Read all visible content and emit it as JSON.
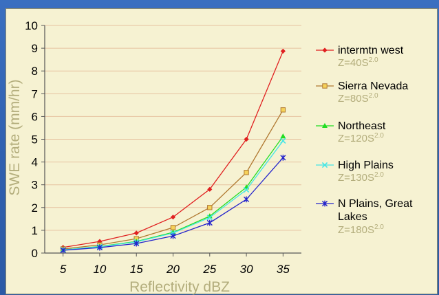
{
  "chart_data": {
    "type": "line",
    "x": [
      5,
      10,
      15,
      20,
      25,
      30,
      35
    ],
    "xticks": [
      "5",
      "10",
      "15",
      "20",
      "25",
      "30",
      "35"
    ],
    "yticks": [
      "0",
      "1",
      "2",
      "3",
      "4",
      "5",
      "6",
      "7",
      "8",
      "9",
      "10"
    ],
    "ylim": [
      0,
      10
    ],
    "xlabel": "Reflectivity dBZ",
    "ylabel": "SWE rate (mm/hr)",
    "grid": "horizontal",
    "legend": "right",
    "series": [
      {
        "name": "intermtn west",
        "formula_base": "Z=40S",
        "formula_exp": "2.0",
        "color": "#e02020",
        "marker": "diamond",
        "values": [
          0.25,
          0.51,
          0.88,
          1.58,
          2.8,
          5.0,
          8.87
        ]
      },
      {
        "name": "Sierra Nevada",
        "formula_base": "Z=80S",
        "formula_exp": "2.0",
        "color": "#b07830",
        "marker": "square",
        "values": [
          0.18,
          0.36,
          0.63,
          1.12,
          2.0,
          3.54,
          6.29
        ]
      },
      {
        "name": "Northeast",
        "formula_base": "Z=120S",
        "formula_exp": "2.0",
        "color": "#22dd22",
        "marker": "triangle",
        "values": [
          0.14,
          0.29,
          0.51,
          0.91,
          1.62,
          2.89,
          5.13
        ]
      },
      {
        "name": "High Plains",
        "formula_base": "Z=130S",
        "formula_exp": "2.0",
        "color": "#44e6e6",
        "marker": "x",
        "values": [
          0.14,
          0.28,
          0.49,
          0.88,
          1.56,
          2.78,
          4.93
        ]
      },
      {
        "name": "N Plains, Great",
        "name_line2": "Lakes",
        "formula_base": "Z=180S",
        "formula_exp": "2.0",
        "color": "#2424cc",
        "marker": "star",
        "values": [
          0.12,
          0.24,
          0.42,
          0.75,
          1.33,
          2.36,
          4.19
        ]
      }
    ]
  }
}
